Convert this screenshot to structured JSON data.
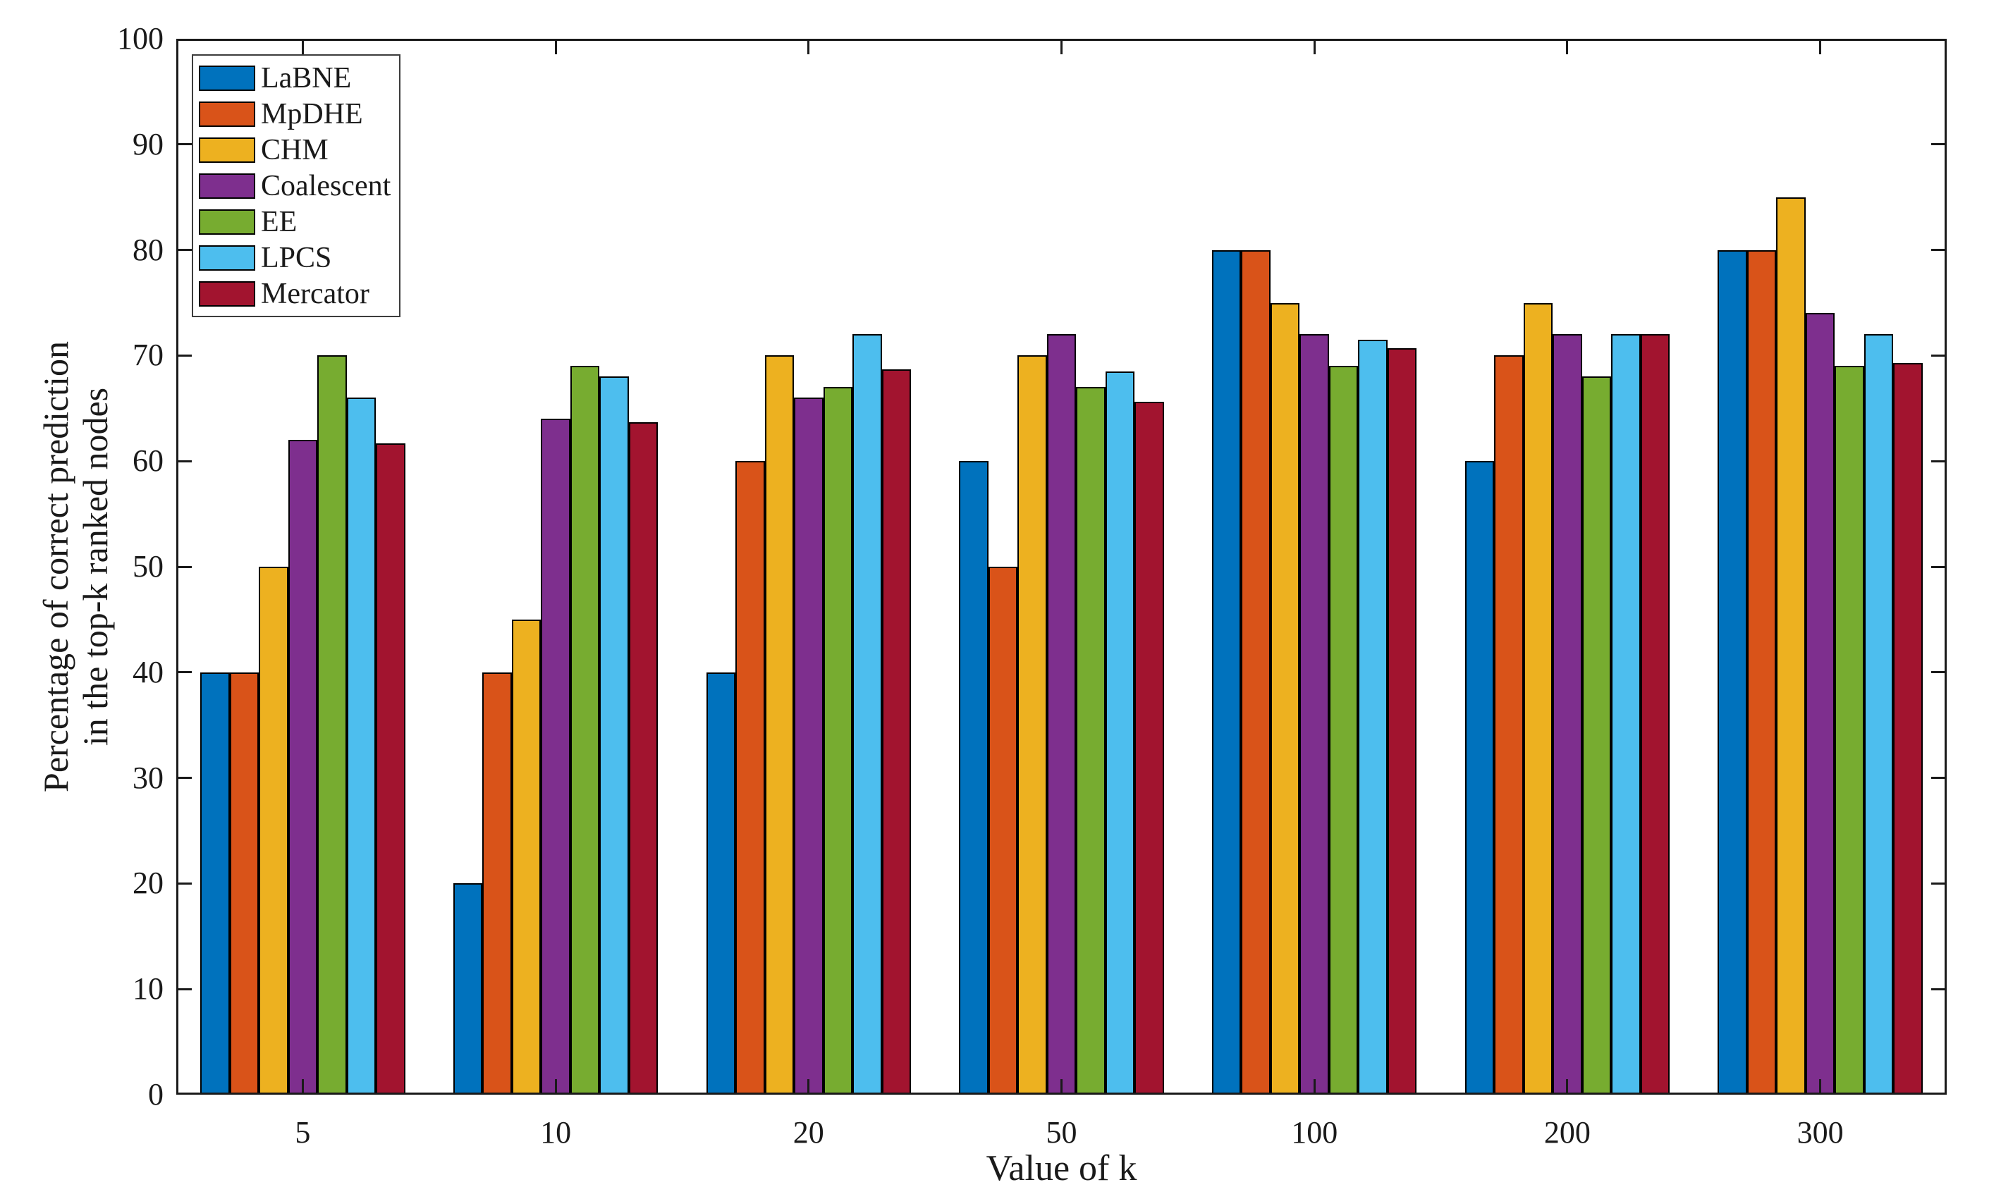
{
  "chart_data": {
    "type": "bar",
    "title": "",
    "xlabel": "Value of k",
    "ylabel_line1": "Percentage of correct prediction",
    "ylabel_line2": "in the top-k ranked nodes",
    "categories": [
      "5",
      "10",
      "20",
      "50",
      "100",
      "200",
      "300"
    ],
    "series": [
      {
        "name": "LaBNE",
        "color": "#0072BD",
        "values": [
          40,
          20,
          40,
          60,
          80,
          60,
          80
        ]
      },
      {
        "name": "MpDHE",
        "color": "#D95319",
        "values": [
          40,
          40,
          60,
          50,
          80,
          70,
          80
        ]
      },
      {
        "name": "CHM",
        "color": "#EDB120",
        "values": [
          50,
          45,
          70,
          70,
          75,
          75,
          85
        ]
      },
      {
        "name": "Coalescent",
        "color": "#7E2F8E",
        "values": [
          62,
          64,
          66,
          72,
          72,
          72,
          74
        ]
      },
      {
        "name": "EE",
        "color": "#77AC30",
        "values": [
          70,
          69,
          67,
          67,
          69,
          68,
          69
        ]
      },
      {
        "name": "LPCS",
        "color": "#4DBEEE",
        "values": [
          66,
          68,
          72,
          68.5,
          71.5,
          72,
          72
        ]
      },
      {
        "name": "Mercator",
        "color": "#A2142F",
        "values": [
          61.7,
          63.7,
          68.7,
          65.6,
          70.7,
          72,
          69.3
        ]
      }
    ],
    "ylim": [
      0,
      100
    ],
    "yticks": [
      0,
      10,
      20,
      30,
      40,
      50,
      60,
      70,
      80,
      90,
      100
    ],
    "grid": false,
    "legend_position": "top-left",
    "axis_color": "#1a1a1a",
    "bar_edge_color": "#000000",
    "group_width_fraction": 0.81
  }
}
